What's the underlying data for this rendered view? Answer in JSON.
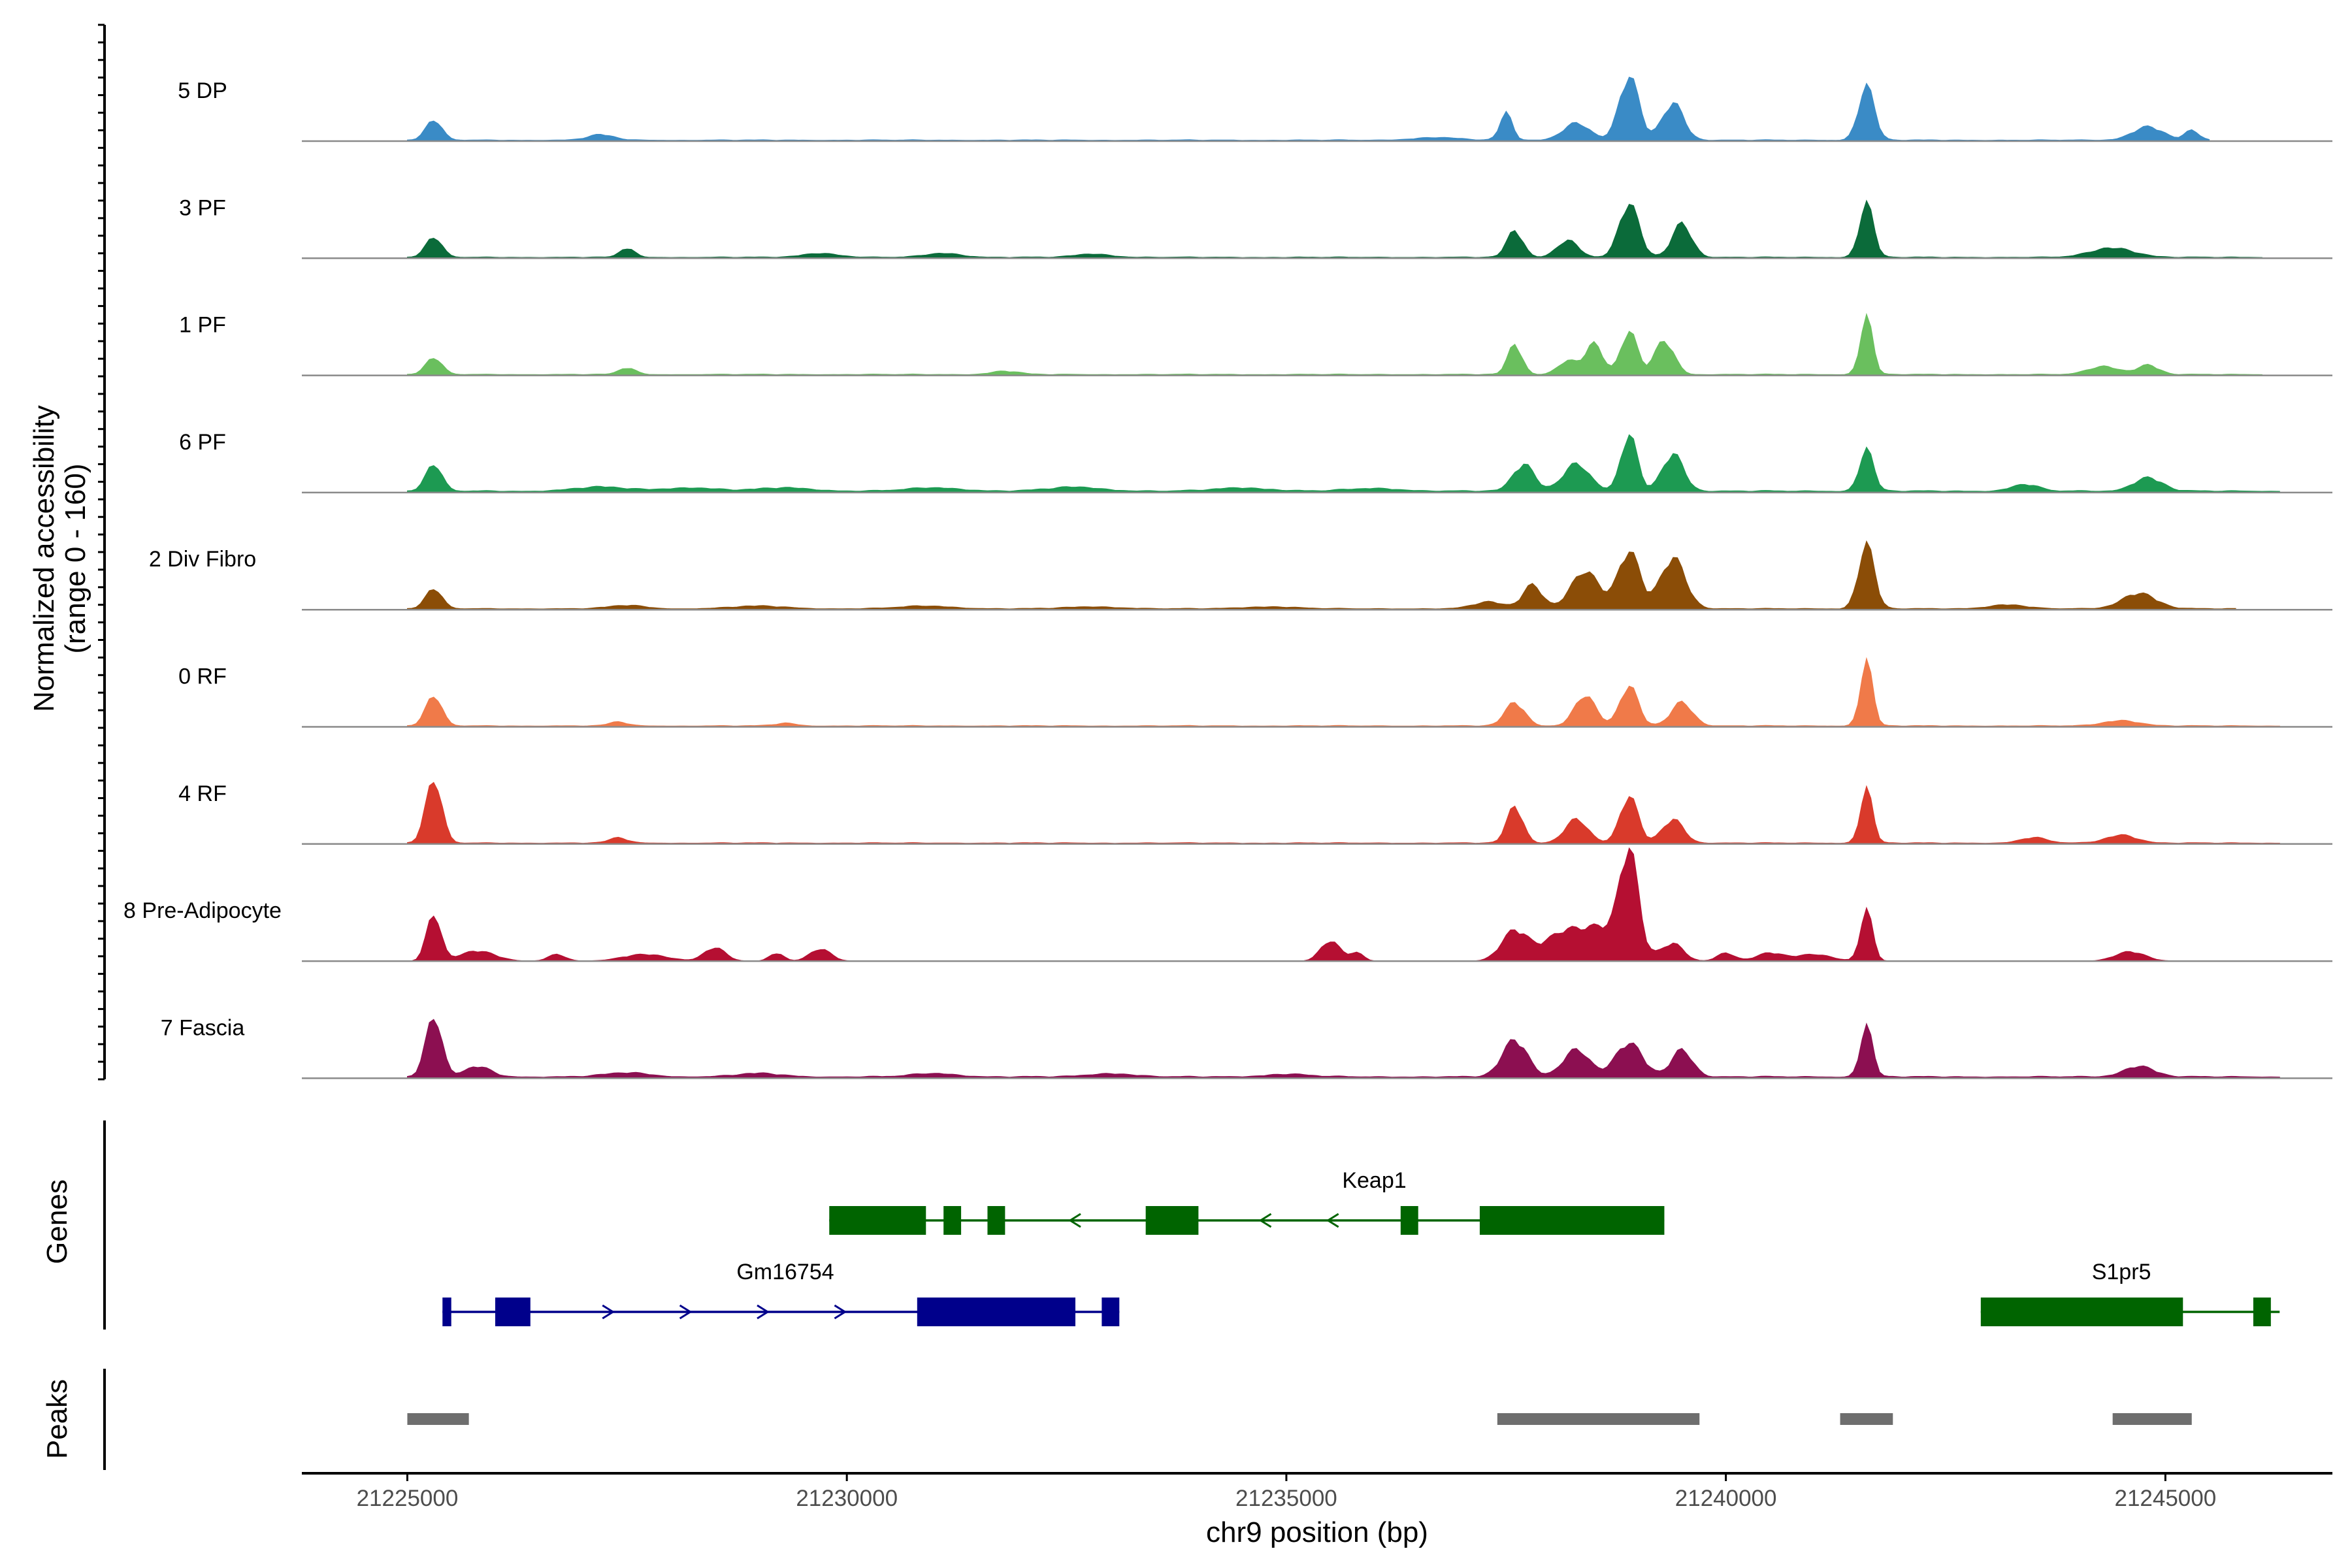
{
  "chart_data": {
    "type": "area",
    "title": "",
    "ylabel_lines": [
      "Normalized accessibility",
      "(range 0 - 160)"
    ],
    "ylim": [
      0,
      160
    ],
    "xlabel": "chr9 position (bp)",
    "xlim": [
      21223800,
      21246900
    ],
    "xticks": [
      21225000,
      21230000,
      21235000,
      21240000,
      21245000
    ],
    "xtick_labels": [
      "21225000",
      "21230000",
      "21235000",
      "21240000",
      "21245000"
    ],
    "series": [
      {
        "name": "5 DP",
        "color": "#3a8bc6",
        "start": 21225000,
        "end": 21245500,
        "base": 2,
        "peaks": [
          [
            21225300,
            30,
            90
          ],
          [
            21227200,
            8,
            150
          ],
          [
            21236700,
            4,
            250
          ],
          [
            21237500,
            40,
            70
          ],
          [
            21238300,
            25,
            150
          ],
          [
            21238900,
            95,
            110
          ],
          [
            21239400,
            55,
            120
          ],
          [
            21241600,
            80,
            90
          ],
          [
            21244800,
            20,
            170
          ],
          [
            21245300,
            14,
            80
          ]
        ]
      },
      {
        "name": "3 PF",
        "color": "#0b6b3a",
        "start": 21225000,
        "end": 21246100,
        "base": 2,
        "peaks": [
          [
            21225300,
            30,
            90
          ],
          [
            21227500,
            14,
            80
          ],
          [
            21229700,
            6,
            200
          ],
          [
            21231100,
            6,
            200
          ],
          [
            21232800,
            5,
            200
          ],
          [
            21237600,
            40,
            90
          ],
          [
            21238200,
            25,
            120
          ],
          [
            21238900,
            80,
            110
          ],
          [
            21239500,
            50,
            110
          ],
          [
            21241600,
            80,
            80
          ],
          [
            21244400,
            14,
            240
          ]
        ]
      },
      {
        "name": "1 PF",
        "color": "#6abf5e",
        "start": 21225000,
        "end": 21246100,
        "base": 2,
        "peaks": [
          [
            21225300,
            25,
            90
          ],
          [
            21227500,
            10,
            90
          ],
          [
            21231800,
            5,
            150
          ],
          [
            21237600,
            45,
            80
          ],
          [
            21238200,
            20,
            110
          ],
          [
            21238500,
            45,
            100
          ],
          [
            21238900,
            65,
            90
          ],
          [
            21239300,
            50,
            110
          ],
          [
            21241600,
            85,
            70
          ],
          [
            21244300,
            12,
            170
          ],
          [
            21244800,
            14,
            120
          ]
        ]
      },
      {
        "name": "6 PF",
        "color": "#1d9a52",
        "start": 21225000,
        "end": 21246300,
        "base": 3,
        "peaks": [
          [
            21225300,
            40,
            90
          ],
          [
            21227200,
            6,
            300
          ],
          [
            21228200,
            5,
            300
          ],
          [
            21229300,
            5,
            300
          ],
          [
            21231000,
            5,
            300
          ],
          [
            21232600,
            6,
            300
          ],
          [
            21234500,
            5,
            300
          ],
          [
            21236000,
            4,
            300
          ],
          [
            21237700,
            40,
            120
          ],
          [
            21238300,
            40,
            150
          ],
          [
            21238900,
            85,
            90
          ],
          [
            21239400,
            55,
            120
          ],
          [
            21241600,
            62,
            80
          ],
          [
            21243400,
            10,
            150
          ],
          [
            21244800,
            20,
            160
          ]
        ]
      },
      {
        "name": "2 Div Fibro",
        "color": "#8b4d07",
        "start": 21225000,
        "end": 21245800,
        "base": 2,
        "peaks": [
          [
            21225300,
            30,
            90
          ],
          [
            21227500,
            5,
            200
          ],
          [
            21229000,
            4,
            300
          ],
          [
            21230900,
            4,
            300
          ],
          [
            21232800,
            3,
            300
          ],
          [
            21234800,
            3,
            300
          ],
          [
            21237300,
            10,
            170
          ],
          [
            21237800,
            35,
            110
          ],
          [
            21238400,
            55,
            160
          ],
          [
            21238900,
            85,
            120
          ],
          [
            21239400,
            75,
            140
          ],
          [
            21241600,
            95,
            90
          ],
          [
            21243200,
            6,
            200
          ],
          [
            21244700,
            23,
            190
          ]
        ]
      },
      {
        "name": "0 RF",
        "color": "#f07a49",
        "start": 21225000,
        "end": 21246300,
        "base": 2,
        "peaks": [
          [
            21225300,
            45,
            90
          ],
          [
            21227400,
            6,
            100
          ],
          [
            21229300,
            4,
            120
          ],
          [
            21237600,
            35,
            110
          ],
          [
            21238400,
            45,
            120
          ],
          [
            21238900,
            60,
            100
          ],
          [
            21239500,
            35,
            120
          ],
          [
            21241600,
            95,
            70
          ],
          [
            21244500,
            8,
            200
          ]
        ]
      },
      {
        "name": "4 RF",
        "color": "#d93a2b",
        "start": 21225000,
        "end": 21246300,
        "base": 2,
        "peaks": [
          [
            21225300,
            95,
            90
          ],
          [
            21227400,
            8,
            100
          ],
          [
            21237600,
            55,
            90
          ],
          [
            21238300,
            35,
            130
          ],
          [
            21238900,
            70,
            100
          ],
          [
            21239400,
            35,
            120
          ],
          [
            21241600,
            80,
            70
          ],
          [
            21243500,
            8,
            150
          ],
          [
            21244500,
            12,
            170
          ]
        ]
      },
      {
        "name": "8 Pre-Adipocyte",
        "color": "#b50f32",
        "start": 21225000,
        "end": 21246300,
        "base": 0,
        "peaks": [
          [
            21225300,
            70,
            80
          ],
          [
            21225800,
            15,
            200
          ],
          [
            21226700,
            10,
            100
          ],
          [
            21227700,
            10,
            250
          ],
          [
            21228500,
            20,
            120
          ],
          [
            21229200,
            12,
            80
          ],
          [
            21229700,
            18,
            120
          ],
          [
            21235500,
            30,
            110
          ],
          [
            21235800,
            12,
            80
          ],
          [
            21237600,
            45,
            150
          ],
          [
            21238100,
            30,
            200
          ],
          [
            21238900,
            140,
            100
          ],
          [
            21238600,
            50,
            300
          ],
          [
            21239400,
            25,
            120
          ],
          [
            21240000,
            12,
            100
          ],
          [
            21240500,
            12,
            150
          ],
          [
            21241000,
            10,
            200
          ],
          [
            21241600,
            75,
            70
          ],
          [
            21244600,
            14,
            170
          ]
        ]
      },
      {
        "name": "7 Fascia",
        "color": "#8c0f51",
        "start": 21225000,
        "end": 21246300,
        "base": 3,
        "peaks": [
          [
            21225300,
            90,
            90
          ],
          [
            21225800,
            15,
            150
          ],
          [
            21227500,
            6,
            250
          ],
          [
            21229000,
            5,
            250
          ],
          [
            21231000,
            5,
            250
          ],
          [
            21233000,
            5,
            250
          ],
          [
            21235000,
            4,
            250
          ],
          [
            21237600,
            55,
            140
          ],
          [
            21238300,
            40,
            150
          ],
          [
            21238900,
            50,
            150
          ],
          [
            21239500,
            40,
            120
          ],
          [
            21241600,
            75,
            70
          ],
          [
            21244700,
            16,
            170
          ]
        ]
      }
    ],
    "genes_label": "Genes",
    "genes": [
      {
        "name": "Keap1",
        "strand": "-",
        "color": "#006400",
        "start": 21229800,
        "end": 21239300,
        "exons": [
          [
            21229800,
            21230900
          ],
          [
            21231100,
            21231300
          ],
          [
            21231600,
            21231800
          ],
          [
            21233400,
            21234000
          ],
          [
            21236300,
            21236500
          ],
          [
            21237200,
            21239300
          ]
        ]
      },
      {
        "name": "Gm16754",
        "strand": "+",
        "color": "#00008b",
        "start": 21225400,
        "end": 21233100,
        "exons": [
          [
            21225400,
            21225500
          ],
          [
            21226000,
            21226400
          ],
          [
            21230800,
            21232600
          ],
          [
            21232900,
            21233100
          ]
        ]
      },
      {
        "name": "S1pr5",
        "strand": "-",
        "color": "#006400",
        "start": 21242900,
        "end": 21246300,
        "exons": [
          [
            21242900,
            21245200
          ],
          [
            21246000,
            21246200
          ]
        ]
      }
    ],
    "peaks_label": "Peaks",
    "peaks_color": "#6e6e6e",
    "peak_regions": [
      [
        21225000,
        21225700
      ],
      [
        21237400,
        21239700
      ],
      [
        21241300,
        21241900
      ],
      [
        21244400,
        21245300
      ]
    ]
  }
}
